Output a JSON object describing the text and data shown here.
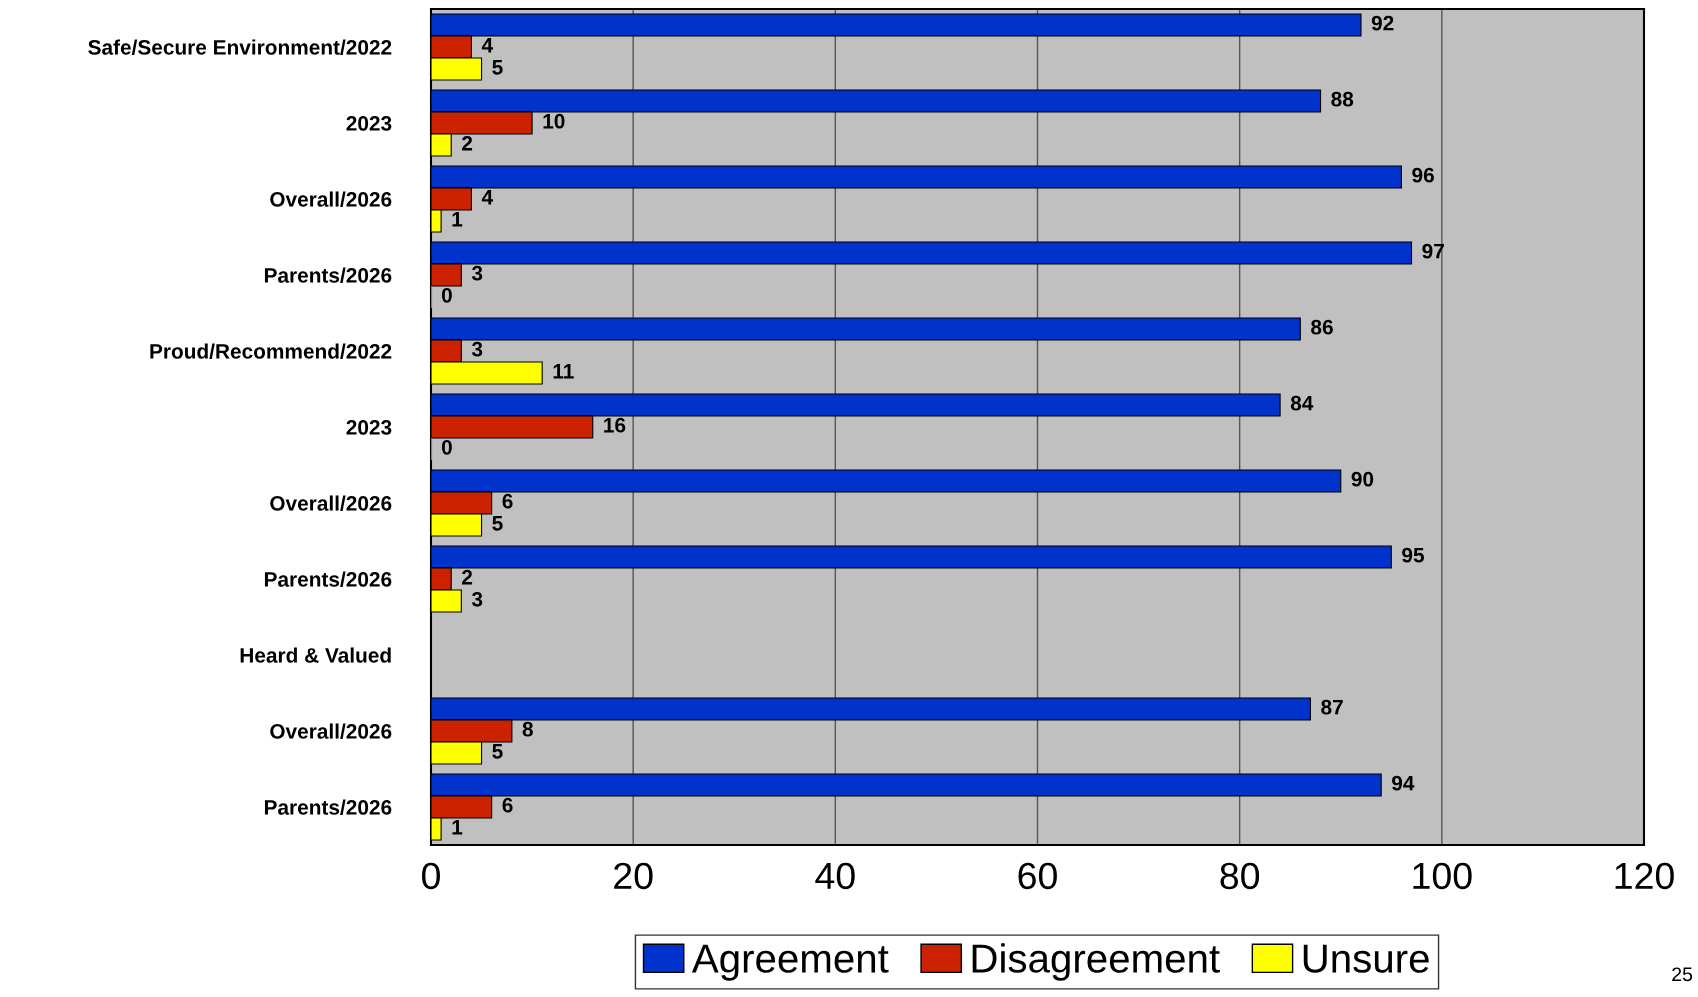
{
  "chart_data": {
    "type": "bar",
    "orientation": "horizontal",
    "categories": [
      "Safe/Secure Environment/2022",
      "2023",
      "Overall/2026",
      "Parents/2026",
      "Proud/Recommend/2022",
      "2023",
      "Overall/2026",
      "Parents/2026",
      "Heard & Valued",
      "Overall/2026",
      "Parents/2026"
    ],
    "series": [
      {
        "name": "Agreement",
        "color": "#0033cc",
        "values": [
          92,
          88,
          96,
          97,
          86,
          84,
          90,
          95,
          null,
          87,
          94
        ]
      },
      {
        "name": "Disagreement",
        "color": "#cc2200",
        "values": [
          4,
          10,
          4,
          3,
          3,
          16,
          6,
          2,
          null,
          8,
          6
        ]
      },
      {
        "name": "Unsure",
        "color": "#ffff00",
        "values": [
          5,
          2,
          1,
          0,
          11,
          0,
          5,
          3,
          null,
          5,
          1
        ]
      }
    ],
    "xlim": [
      0,
      120
    ],
    "xticks": [
      0,
      20,
      40,
      60,
      80,
      100,
      120
    ],
    "grid": "x",
    "legend": "bottom",
    "data_labels": true,
    "annotations": [
      "25"
    ]
  }
}
